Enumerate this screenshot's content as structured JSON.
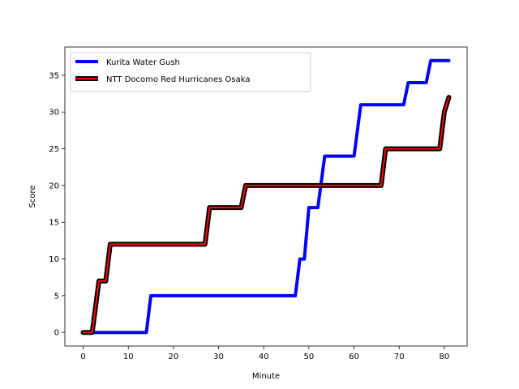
{
  "chart_data": {
    "type": "line",
    "xlabel": "Minute",
    "ylabel": "Score",
    "xlim": [
      -4.05,
      85.05
    ],
    "ylim": [
      -1.85,
      38.85
    ],
    "xticks": [
      0,
      10,
      20,
      30,
      40,
      50,
      60,
      70,
      80
    ],
    "yticks": [
      0,
      5,
      10,
      15,
      20,
      25,
      30,
      35
    ],
    "grid": false,
    "legend_position": "upper-left",
    "series": [
      {
        "name": "Kurita Water Gush",
        "color": "#0000ff",
        "x": [
          0,
          14,
          15,
          47,
          48,
          49,
          50,
          51,
          52,
          53.5,
          60,
          61.5,
          71,
          72,
          76,
          77,
          81
        ],
        "y": [
          0,
          0,
          5,
          5,
          10,
          10,
          17,
          17,
          17,
          24,
          24,
          31,
          31,
          34,
          34,
          37,
          37
        ]
      },
      {
        "name": "NTT Docomo Red Hurricanes Osaka",
        "color": "#ff0000",
        "x": [
          0,
          2,
          3.5,
          5,
          6,
          27,
          28,
          35,
          36,
          66,
          67,
          79,
          80,
          81
        ],
        "y": [
          0,
          0,
          7,
          7,
          12,
          12,
          17,
          17,
          20,
          20,
          25,
          25,
          30,
          32
        ]
      }
    ]
  }
}
